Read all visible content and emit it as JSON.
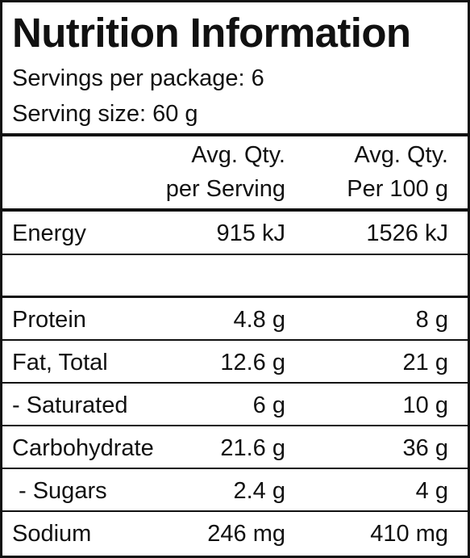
{
  "title": "Nutrition Information",
  "servings": "Servings per package: 6",
  "serving_size": "Serving size: 60 g",
  "table": {
    "header": [
      [
        "Avg. Qty.",
        "per Serving"
      ],
      [
        "Avg. Qty.",
        "Per 100 g"
      ]
    ],
    "rows": [
      [
        "Energy",
        "915 kJ",
        "1526 kJ"
      ],
      [
        "Protein",
        "4.8 g",
        "8 g"
      ],
      [
        "Fat, Total",
        "12.6 g",
        "21 g"
      ],
      [
        "- Saturated",
        "6 g",
        "10 g"
      ],
      [
        "Carbohydrate",
        "21.6 g",
        "36 g"
      ],
      [
        "- Sugars",
        "2.4 g",
        "4 g"
      ],
      [
        "Sodium",
        "246 mg",
        "410 mg"
      ]
    ]
  }
}
